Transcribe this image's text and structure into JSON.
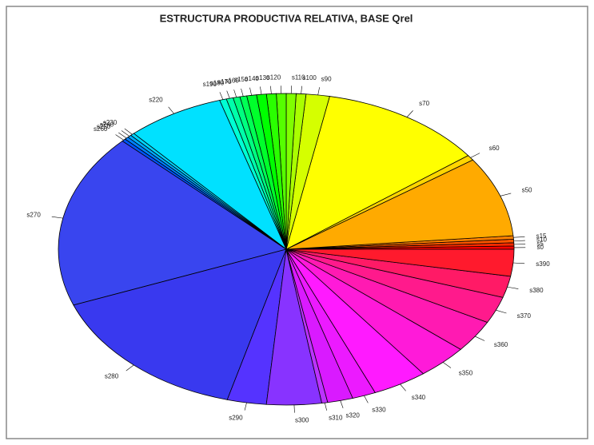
{
  "chart_data": {
    "type": "pie",
    "title": "ESTRUCTURA PRODUCTIVA RELATIVA, BASE Qrel",
    "categories": [
      "s0",
      "s5",
      "s10",
      "s15",
      "s50",
      "s60",
      "s70",
      "s90",
      "s100",
      "s110",
      "s120",
      "s130",
      "s140",
      "s150",
      "s160",
      "s170",
      "s180",
      "s190",
      "s220",
      "s230",
      "s240",
      "s250",
      "s260",
      "s270",
      "s280",
      "s290",
      "s300",
      "s310",
      "s320",
      "s330",
      "s340",
      "s350",
      "s360",
      "s370",
      "s380",
      "s390"
    ],
    "values": [
      1.2,
      1.2,
      1.3,
      1.3,
      30,
      2,
      42,
      6,
      2.5,
      2.5,
      2.5,
      2.5,
      2.5,
      2.5,
      1.75,
      1.75,
      1.75,
      1.75,
      25,
      1,
      1,
      1,
      1,
      65,
      54,
      10,
      14,
      1.5,
      6.5,
      6,
      14,
      13,
      12,
      10,
      8,
      10
    ],
    "colors": [
      "hsl(0,100%,50%)",
      "hsl(10,100%,50%)",
      "hsl(20,100%,50%)",
      "hsl(30,100%,50%)",
      "hsl(40,100%,50%)",
      "hsl(50,100%,50%)",
      "hsl(60,100%,50%)",
      "hsl(70,100%,50%)",
      "hsl(80,100%,50%)",
      "hsl(90,100%,50%)",
      "hsl(100,100%,50%)",
      "hsl(110,100%,50%)",
      "hsl(120,100%,50%)",
      "hsl(130,100%,50%)",
      "hsl(140,100%,50%)",
      "hsl(150,100%,50%)",
      "hsl(160,100%,50%)",
      "hsl(170,100%,50%)",
      "hsl(187,100%,50%)",
      "hsl(190,100%,50%)",
      "hsl(200,100%,50%)",
      "hsl(210,100%,50%)",
      "hsl(220,100%,50%)",
      "hsl(236,85%,58%)",
      "hsl(240,85%,58%)",
      "hsl(250,100%,60%)",
      "hsl(265,100%,60%)",
      "hsl(280,100%,60%)",
      "hsl(290,100%,55%)",
      "hsl(295,100%,55%)",
      "hsl(300,100%,55%)",
      "hsl(310,100%,55%)",
      "hsl(320,100%,55%)",
      "hsl(330,100%,55%)",
      "hsl(340,100%,55%)",
      "hsl(355,100%,55%)"
    ]
  }
}
